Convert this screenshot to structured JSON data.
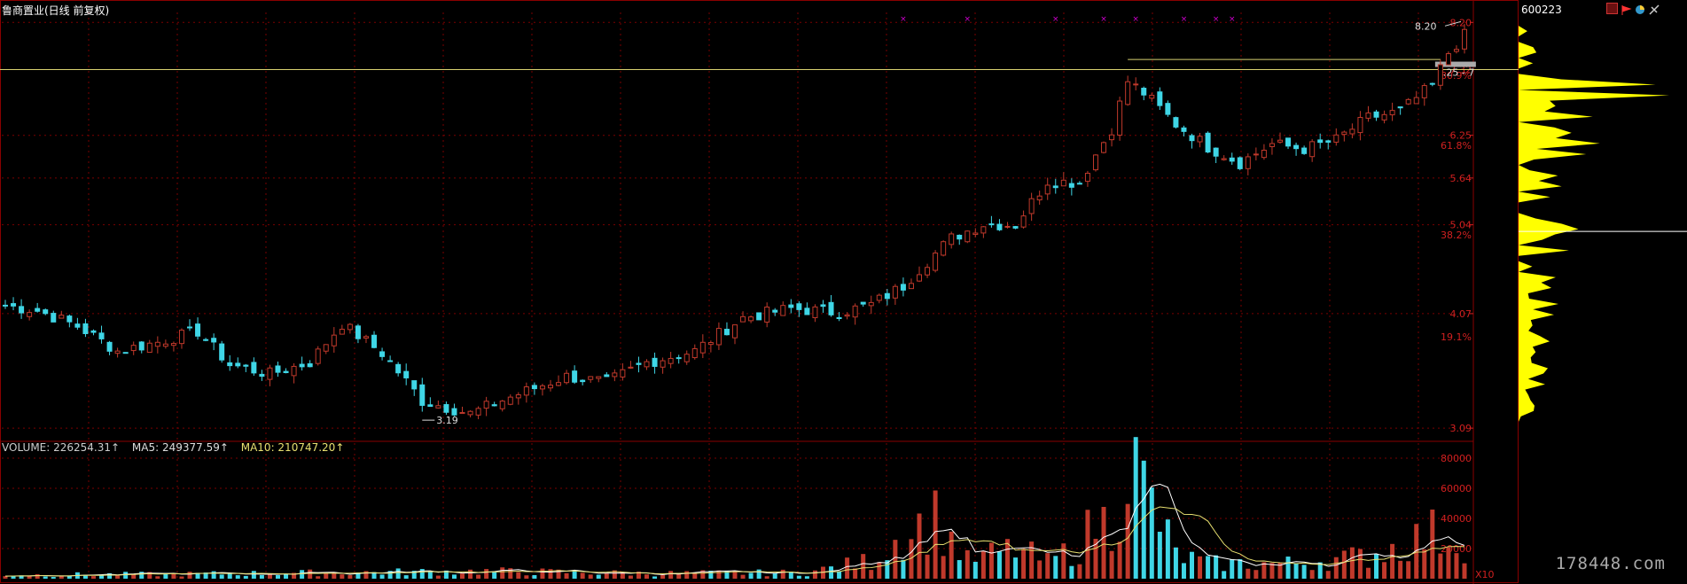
{
  "header": {
    "title": "鲁商置业(日线 前复权)",
    "code": "600223"
  },
  "volume_legend": {
    "volume": "VOLUME: 226254.31↑",
    "ma5": "MA5: 249377.59↑",
    "ma10": "MA10: 210747.20↑"
  },
  "watermark": "178448.com",
  "colors": {
    "up": "#c0392b",
    "down": "#3fd6e6",
    "grid": "#7a0000",
    "axis_text": "#d02020",
    "ma5": "#ffffff",
    "ma10": "#e8e070",
    "profile": "#ffff00",
    "hline": "#d8d070"
  },
  "chart_data": [
    {
      "type": "candlestick",
      "title": "鲁商置业(日线 前复权)",
      "y_ticks": [
        "8.20",
        "7.32",
        "6.25",
        "5.64",
        "5.04",
        "4.07",
        "3.09"
      ],
      "y_tick_values": [
        8.2,
        7.32,
        6.25,
        5.64,
        5.04,
        4.07,
        3.09
      ],
      "pct_labels": [
        "80.9%",
        "61.8%",
        "38.2%",
        "19.1%"
      ],
      "pct_values": [
        7.22,
        6.1,
        4.92,
        3.85
      ],
      "ylim": [
        3.0,
        8.4
      ],
      "annotations": {
        "high_label": "8.20",
        "low_label": "3.19",
        "range_label": "7.25 - 7",
        "resistance_level": 7.32,
        "recent_high_line": 7.5
      },
      "anchors": [
        [
          0,
          4.15
        ],
        [
          4,
          4.1
        ],
        [
          9,
          3.95
        ],
        [
          14,
          3.72
        ],
        [
          19,
          3.8
        ],
        [
          24,
          3.9
        ],
        [
          28,
          3.6
        ],
        [
          33,
          3.52
        ],
        [
          38,
          3.62
        ],
        [
          42,
          3.97
        ],
        [
          47,
          3.7
        ],
        [
          52,
          3.3
        ],
        [
          58,
          3.2
        ],
        [
          63,
          3.33
        ],
        [
          70,
          3.5
        ],
        [
          75,
          3.45
        ],
        [
          80,
          3.62
        ],
        [
          86,
          3.72
        ],
        [
          92,
          4.03
        ],
        [
          98,
          4.12
        ],
        [
          104,
          4.08
        ],
        [
          108,
          4.16
        ],
        [
          112,
          4.35
        ],
        [
          118,
          4.88
        ],
        [
          122,
          5.05
        ],
        [
          126,
          5.04
        ],
        [
          130,
          5.6
        ],
        [
          134,
          5.58
        ],
        [
          138,
          6.35
        ],
        [
          140,
          7.12
        ],
        [
          142,
          6.92
        ],
        [
          146,
          6.42
        ],
        [
          150,
          6.08
        ],
        [
          154,
          5.85
        ],
        [
          158,
          6.12
        ],
        [
          162,
          6.05
        ],
        [
          166,
          6.18
        ],
        [
          170,
          6.52
        ],
        [
          174,
          6.62
        ],
        [
          178,
          7.05
        ],
        [
          180,
          7.62
        ],
        [
          182,
          7.95
        ]
      ],
      "volume": {
        "legend": [
          "VOLUME: 226254.31↑",
          "MA5: 249377.59↑",
          "MA10: 210747.20↑"
        ],
        "y_ticks": [
          "80000",
          "60000",
          "40000",
          "20000"
        ],
        "y_tick_values": [
          80000,
          60000,
          40000,
          20000
        ],
        "ylim": [
          0,
          90000
        ],
        "unit_label": "X10",
        "anchors": [
          [
            0,
            2500
          ],
          [
            20,
            3000
          ],
          [
            40,
            4000
          ],
          [
            60,
            5000
          ],
          [
            80,
            3500
          ],
          [
            100,
            4000
          ],
          [
            108,
            12000
          ],
          [
            112,
            30000
          ],
          [
            116,
            40000
          ],
          [
            120,
            12000
          ],
          [
            126,
            20000
          ],
          [
            130,
            11000
          ],
          [
            134,
            22000
          ],
          [
            136,
            38000
          ],
          [
            138,
            35000
          ],
          [
            140,
            82000
          ],
          [
            142,
            60000
          ],
          [
            146,
            16000
          ],
          [
            150,
            10000
          ],
          [
            160,
            10000
          ],
          [
            170,
            15000
          ],
          [
            178,
            30000
          ],
          [
            182,
            25000
          ]
        ]
      }
    }
  ]
}
